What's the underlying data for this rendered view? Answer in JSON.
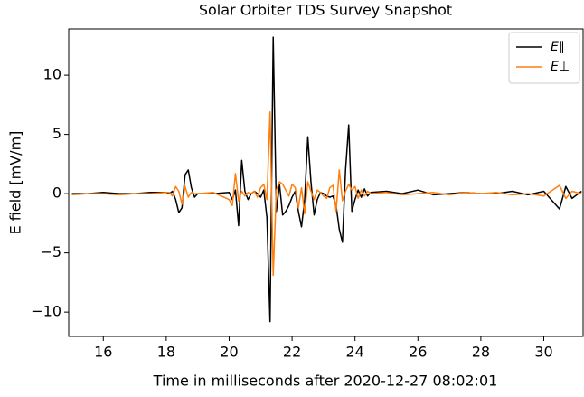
{
  "chart_data": {
    "type": "line",
    "title": "Solar Orbiter TDS Survey Snapshot",
    "x_label": "Time in milliseconds after 2020-12-27 08:02:01",
    "y_label": "E field [mV/m]",
    "x": [
      15,
      15.5,
      16,
      16.5,
      17,
      17.5,
      18,
      18.1,
      18.2,
      18.3,
      18.4,
      18.5,
      18.6,
      18.7,
      18.8,
      18.9,
      19.0,
      19.5,
      20.0,
      20.1,
      20.2,
      20.3,
      20.4,
      20.5,
      20.6,
      20.7,
      20.8,
      20.9,
      21.0,
      21.1,
      21.2,
      21.3,
      21.4,
      21.5,
      21.6,
      21.7,
      21.8,
      21.9,
      22.0,
      22.1,
      22.2,
      22.3,
      22.4,
      22.5,
      22.6,
      22.7,
      22.8,
      22.9,
      23.0,
      23.1,
      23.2,
      23.3,
      23.4,
      23.5,
      23.6,
      23.7,
      23.8,
      23.9,
      24.0,
      24.1,
      24.2,
      24.3,
      24.4,
      24.5,
      25,
      25.5,
      26,
      26.5,
      27,
      27.5,
      28,
      28.5,
      29,
      29.5,
      30,
      30.5,
      30.7,
      30.9,
      31.2
    ],
    "series": [
      {
        "name": "E∥",
        "color": "#000000",
        "values": [
          0,
          0,
          0.1,
          0,
          0,
          0.1,
          0.1,
          0,
          0.2,
          -0.5,
          -1.6,
          -1.2,
          1.6,
          2.0,
          0.5,
          -0.3,
          0,
          0,
          0.1,
          -0.5,
          0.3,
          -2.7,
          2.8,
          0.2,
          -0.5,
          0,
          0.2,
          0,
          -0.3,
          0.3,
          -2.0,
          -10.8,
          13.2,
          -1.5,
          0.8,
          -1.8,
          -1.5,
          -1.0,
          -0.3,
          0.2,
          -1.5,
          -2.8,
          -0.5,
          4.8,
          1.0,
          -1.8,
          -0.5,
          0.1,
          0.0,
          -0.2,
          -0.3,
          -0.2,
          -1.0,
          -3.0,
          -4.1,
          2.0,
          5.8,
          -1.5,
          -0.5,
          0.3,
          -0.3,
          0.4,
          -0.2,
          0.1,
          0.2,
          0,
          0.3,
          -0.1,
          0,
          0.1,
          0,
          0,
          0.2,
          -0.1,
          0.2,
          -1.3,
          0.6,
          -0.4,
          0.2
        ]
      },
      {
        "name": "E⊥",
        "color": "#ff7f0e",
        "values": [
          -0.1,
          0,
          0,
          -0.1,
          0,
          0,
          0.1,
          0.1,
          -0.2,
          0.6,
          0.2,
          -0.9,
          0.6,
          -0.3,
          0.1,
          0,
          0,
          0.1,
          -0.5,
          -1.0,
          1.7,
          -0.6,
          0.2,
          -0.2,
          0.1,
          0,
          0.2,
          -0.3,
          0.5,
          0.8,
          -0.5,
          6.9,
          -6.9,
          0.3,
          1.0,
          0.8,
          0.3,
          -0.2,
          0.8,
          0.5,
          -1.2,
          0.5,
          -1.7,
          1.0,
          0.2,
          -0.5,
          0.3,
          0.1,
          -0.2,
          -0.4,
          0.5,
          0.7,
          -1.5,
          2.0,
          -0.6,
          0.2,
          0.8,
          0.3,
          0.6,
          -0.4,
          0.3,
          -0.2,
          0.2,
          0,
          0.1,
          -0.1,
          0,
          0.1,
          -0.1,
          0.1,
          0,
          0.1,
          -0.1,
          0,
          -0.2,
          0.7,
          -0.4,
          0.2,
          0
        ]
      }
    ],
    "xlim": [
      14.9,
      31.25
    ],
    "ylim": [
      -12.05,
      13.9
    ],
    "xticks": [
      16,
      18,
      20,
      22,
      24,
      26,
      28,
      30
    ],
    "yticks": [
      {
        "value": -10,
        "label": "−10"
      },
      {
        "value": -5,
        "label": "−5"
      },
      0,
      5,
      10
    ],
    "legend": "upper right"
  }
}
